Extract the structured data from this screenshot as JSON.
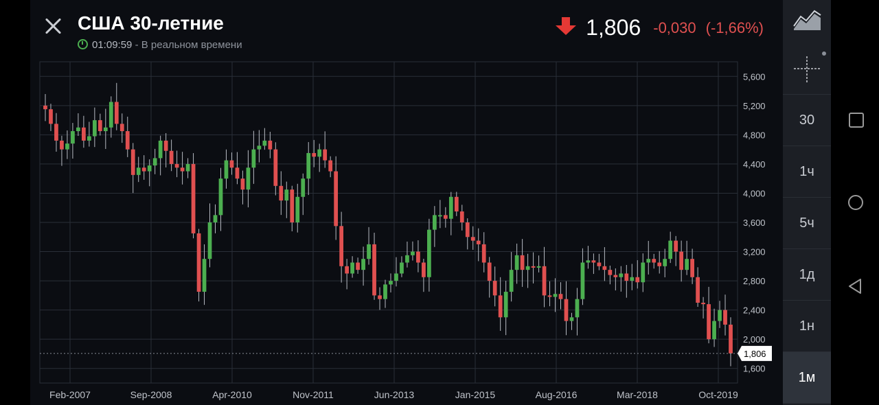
{
  "header": {
    "title": "США 30-летние",
    "time": "01:09:59",
    "status": "- В реальном времени",
    "price": "1,806",
    "change": "-0,030",
    "change_pct": "(-1,66%)",
    "direction_icon": "arrow-down-icon"
  },
  "colors": {
    "up": "#4caf50",
    "down": "#e05050",
    "background": "#0b0d12",
    "grid": "#2a2f38"
  },
  "sidebar": {
    "tools": [
      {
        "name": "area-chart-icon"
      },
      {
        "name": "crosshair-icon"
      }
    ],
    "intervals": [
      {
        "label": "30",
        "active": false
      },
      {
        "label": "1ч",
        "active": false
      },
      {
        "label": "5ч",
        "active": false
      },
      {
        "label": "1д",
        "active": false
      },
      {
        "label": "1н",
        "active": false
      },
      {
        "label": "1м",
        "active": true
      }
    ]
  },
  "chart_data": {
    "type": "candlestick",
    "y_ticks": [
      "5,600",
      "5,200",
      "4,800",
      "4,400",
      "4,000",
      "3,600",
      "3,200",
      "2,800",
      "2,400",
      "2,000",
      "1,600"
    ],
    "x_ticks": [
      "Feb-2007",
      "Sep-2008",
      "Apr-2010",
      "Nov-2011",
      "Jun-2013",
      "Jan-2015",
      "Aug-2016",
      "Mar-2018",
      "Oct-2019"
    ],
    "ylim": [
      1400,
      5800
    ],
    "last_price_label": "1,806",
    "last_price": 1.806,
    "closes": [
      5.15,
      4.95,
      4.72,
      4.6,
      4.68,
      4.85,
      4.9,
      4.72,
      4.78,
      5.0,
      4.85,
      4.9,
      5.25,
      4.95,
      4.85,
      4.6,
      4.25,
      4.35,
      4.3,
      4.38,
      4.48,
      4.72,
      4.58,
      4.4,
      4.35,
      4.3,
      4.4,
      3.45,
      2.65,
      3.1,
      3.6,
      3.7,
      4.2,
      4.45,
      4.35,
      4.2,
      4.05,
      4.35,
      4.6,
      4.65,
      4.72,
      4.6,
      4.1,
      3.9,
      4.05,
      3.6,
      3.95,
      4.2,
      4.55,
      4.5,
      4.6,
      4.45,
      4.3,
      3.55,
      3.0,
      2.9,
      3.05,
      2.95,
      3.1,
      3.3,
      2.6,
      2.55,
      2.75,
      2.8,
      2.9,
      3.05,
      3.15,
      3.2,
      3.05,
      2.85,
      3.5,
      3.7,
      3.7,
      3.65,
      3.95,
      3.75,
      3.6,
      3.4,
      3.35,
      3.3,
      3.05,
      2.8,
      2.6,
      2.3,
      2.65,
      2.95,
      3.15,
      2.95,
      3.0,
      2.98,
      3.0,
      2.6,
      2.58,
      2.62,
      2.55,
      2.25,
      2.3,
      2.55,
      3.05,
      3.08,
      3.05,
      3.0,
      2.95,
      2.88,
      2.85,
      2.9,
      2.8,
      2.85,
      2.78,
      3.05,
      3.1,
      3.05,
      3.0,
      3.1,
      3.35,
      3.2,
      2.95,
      3.1,
      2.85,
      2.5,
      2.48,
      2.0,
      2.25,
      2.4,
      2.2,
      1.806
    ],
    "volatility_seed": 7
  }
}
